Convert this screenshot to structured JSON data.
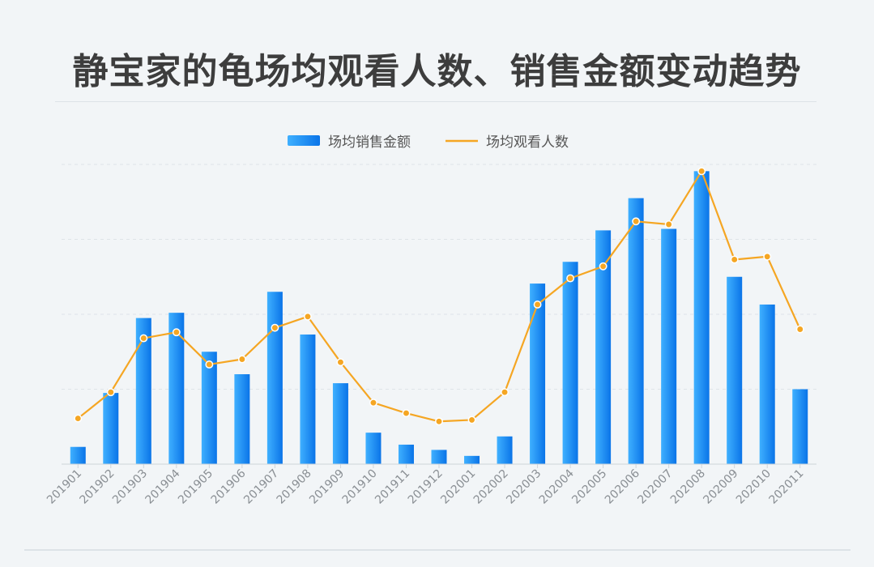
{
  "title": "静宝家的龟场均观看人数、销售金额变动趋势",
  "colors": {
    "background": "#f2f5f7",
    "bar_light": "#3fb0ff",
    "bar_dark": "#0a74e8",
    "line": "#f5a623"
  },
  "chart_data": {
    "type": "bar",
    "title": "静宝家的龟场均观看人数、销售金额变动趋势",
    "categories": [
      "201901",
      "201902",
      "201903",
      "201904",
      "201905",
      "201906",
      "201907",
      "201908",
      "201909",
      "201910",
      "201911",
      "201912",
      "202001",
      "202002",
      "202003",
      "202004",
      "202005",
      "202006",
      "202007",
      "202008",
      "202009",
      "202010",
      "202011"
    ],
    "series": [
      {
        "name": "场均销售金额",
        "type": "bar",
        "values": [
          0.23,
          0.95,
          1.95,
          2.02,
          1.5,
          1.2,
          2.3,
          1.73,
          1.08,
          0.42,
          0.26,
          0.19,
          0.11,
          0.37,
          2.41,
          2.7,
          3.12,
          3.55,
          3.14,
          3.91,
          2.5,
          2.13,
          1.0
        ]
      },
      {
        "name": "场均观看人数",
        "type": "line",
        "values": [
          0.61,
          0.96,
          1.68,
          1.76,
          1.33,
          1.4,
          1.82,
          1.97,
          1.36,
          0.82,
          0.68,
          0.57,
          0.59,
          0.96,
          2.13,
          2.48,
          2.64,
          3.24,
          3.2,
          3.91,
          2.73,
          2.77,
          1.8
        ]
      }
    ],
    "ylim": [
      0,
      4
    ],
    "grid": true,
    "legend_position": "top-center",
    "xlabel": "",
    "ylabel": ""
  }
}
